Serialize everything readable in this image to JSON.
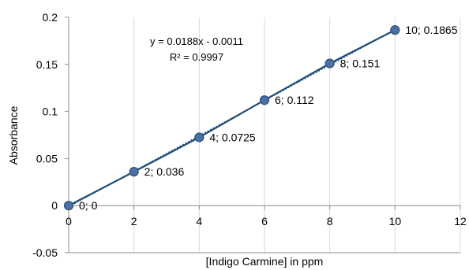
{
  "chart_data": {
    "type": "scatter",
    "xlabel": "[Indigo Carmine] in ppm",
    "ylabel": "Absorbance",
    "xlim": [
      0,
      12
    ],
    "ylim": [
      -0.05,
      0.2
    ],
    "x_ticks": [
      0,
      2,
      4,
      6,
      8,
      10,
      12
    ],
    "y_ticks": [
      -0.05,
      0,
      0.05,
      0.1,
      0.15,
      0.2
    ],
    "x_tick_labels": [
      "0",
      "2",
      "4",
      "6",
      "8",
      "10",
      "12"
    ],
    "y_tick_labels": [
      "-0.05",
      "0",
      "0.05",
      "0.1",
      "0.15",
      "0.2"
    ],
    "grid": "vertical",
    "series": [
      {
        "x": [
          0,
          2,
          4,
          6,
          8,
          10
        ],
        "y": [
          0,
          0.036,
          0.0725,
          0.112,
          0.151,
          0.1865
        ],
        "labels": [
          "0; 0",
          "2; 0.036",
          "4; 0.0725",
          "6; 0.112",
          "8; 0.151",
          "10; 0.1865"
        ],
        "color": "#1F4E79",
        "marker_fill": "#4A6FA5"
      }
    ],
    "trendline": {
      "type": "linear",
      "slope": 0.0188,
      "intercept": -0.0011,
      "equation": "y = 0.0188x - 0.0011",
      "r_squared": "R² = 0.9997",
      "x_range": [
        0,
        10
      ],
      "style": "dotted"
    },
    "colors": {
      "axis": "#8C8C8C",
      "grid": "#D9D9D9",
      "series_line": "#1F4E79",
      "marker_fill": "#4A6FA5",
      "marker_edge": "#2F4F73"
    }
  }
}
